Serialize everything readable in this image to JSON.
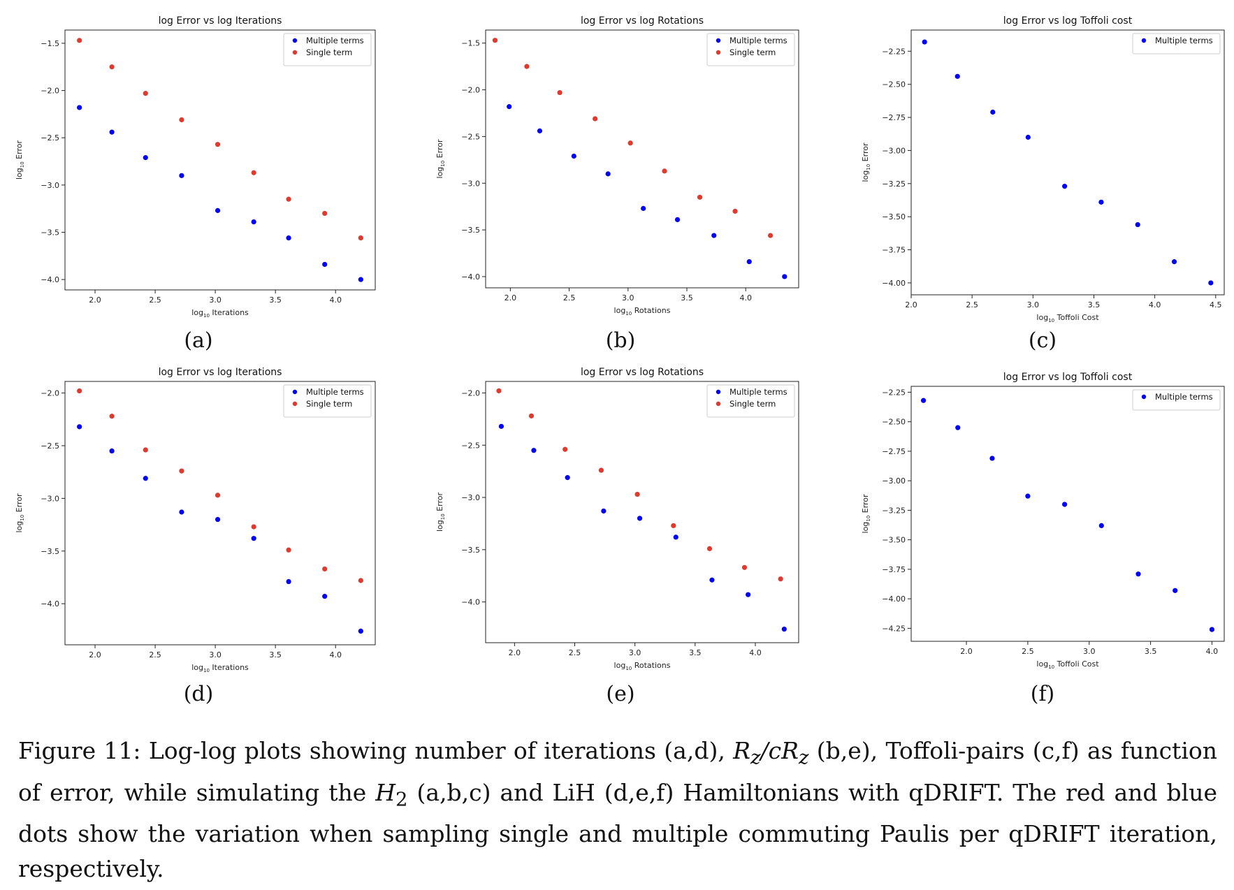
{
  "figure": {
    "caption": {
      "label": "Figure 11:",
      "p1": " Log-log plots showing number of iterations (a,d), ",
      "m1": "R",
      "m1s": "z",
      "m2": "/cR",
      "m2s": "z",
      "p2": " (b,e), Toffoli-pairs (c,f) as function of error, while simulating the ",
      "m3": "H",
      "m3s": "2",
      "p3": " (a,b,c) and LiH (d,e,f) Hamiltonians with qDRIFT. The red and blue dots show the variation when sampling single and multiple commuting Paulis per qDRIFT iteration, respectively."
    }
  },
  "colors": {
    "multiple": "#0000ff",
    "single": "#e03a2e"
  },
  "chart_data": [
    {
      "type": "scatter",
      "panel_label": "(a)",
      "title": "log Error vs log Iterations",
      "xlabel": "log10 Iterations",
      "ylabel": "log10 Error",
      "xlim": [
        1.75,
        4.33
      ],
      "ylim": [
        -4.11,
        -1.36
      ],
      "xticks": [
        2.0,
        2.5,
        3.0,
        3.5,
        4.0
      ],
      "xtick_labels": [
        "2.0",
        "2.5",
        "3.0",
        "3.5",
        "4.0"
      ],
      "yticks": [
        -4.0,
        -3.5,
        -3.0,
        -2.5,
        -2.0,
        -1.5
      ],
      "ytick_labels": [
        "−4.0",
        "−3.5",
        "−3.0",
        "−2.5",
        "−2.0",
        "−1.5"
      ],
      "legend_position": "top-right",
      "series": [
        {
          "name": "Multiple terms",
          "color": "multiple",
          "x": [
            1.87,
            2.14,
            2.42,
            2.72,
            3.02,
            3.32,
            3.61,
            3.91,
            4.21
          ],
          "y": [
            -2.18,
            -2.44,
            -2.71,
            -2.9,
            -3.27,
            -3.39,
            -3.56,
            -3.84,
            -4.0
          ]
        },
        {
          "name": "Single term",
          "color": "single",
          "x": [
            1.87,
            2.14,
            2.42,
            2.72,
            3.02,
            3.32,
            3.61,
            3.91,
            4.21
          ],
          "y": [
            -1.47,
            -1.75,
            -2.03,
            -2.31,
            -2.57,
            -2.87,
            -3.15,
            -3.3,
            -3.56
          ]
        }
      ]
    },
    {
      "type": "scatter",
      "panel_label": "(b)",
      "title": "log Error vs log Rotations",
      "xlabel": "log10 Rotations",
      "ylabel": "log10 Error",
      "xlim": [
        1.79,
        4.45
      ],
      "ylim": [
        -4.12,
        -1.36
      ],
      "xticks": [
        2.0,
        2.5,
        3.0,
        3.5,
        4.0
      ],
      "xtick_labels": [
        "2.0",
        "2.5",
        "3.0",
        "3.5",
        "4.0"
      ],
      "yticks": [
        -4.0,
        -3.5,
        -3.0,
        -2.5,
        -2.0,
        -1.5
      ],
      "ytick_labels": [
        "−4.0",
        "−3.5",
        "−3.0",
        "−2.5",
        "−2.0",
        "−1.5"
      ],
      "legend_position": "top-right",
      "series": [
        {
          "name": "Multiple terms",
          "color": "multiple",
          "x": [
            1.99,
            2.25,
            2.54,
            2.83,
            3.13,
            3.42,
            3.73,
            4.03,
            4.33
          ],
          "y": [
            -2.18,
            -2.44,
            -2.71,
            -2.9,
            -3.27,
            -3.39,
            -3.56,
            -3.84,
            -4.0
          ]
        },
        {
          "name": "Single term",
          "color": "single",
          "x": [
            1.87,
            2.14,
            2.42,
            2.72,
            3.02,
            3.31,
            3.61,
            3.91,
            4.21
          ],
          "y": [
            -1.47,
            -1.75,
            -2.03,
            -2.31,
            -2.57,
            -2.87,
            -3.15,
            -3.3,
            -3.56
          ]
        }
      ]
    },
    {
      "type": "scatter",
      "panel_label": "(c)",
      "title": "log Error vs log Toffoli cost",
      "xlabel": "log10 Toffoli Cost",
      "ylabel": "log10 Error",
      "xlim": [
        2.0,
        4.57
      ],
      "ylim": [
        -4.09,
        -2.09
      ],
      "xticks": [
        2.0,
        2.5,
        3.0,
        3.5,
        4.0,
        4.5
      ],
      "xtick_labels": [
        "2.0",
        "2.5",
        "3.0",
        "3.5",
        "4.0",
        "4.5"
      ],
      "yticks": [
        -4.0,
        -3.75,
        -3.5,
        -3.25,
        -3.0,
        -2.75,
        -2.5,
        -2.25
      ],
      "ytick_labels": [
        "−4.00",
        "−3.75",
        "−3.50",
        "−3.25",
        "−3.00",
        "−2.75",
        "−2.50",
        "−2.25"
      ],
      "legend_position": "top-right",
      "series": [
        {
          "name": "Multiple terms",
          "color": "multiple",
          "x": [
            2.11,
            2.38,
            2.67,
            2.96,
            3.26,
            3.56,
            3.86,
            4.16,
            4.46
          ],
          "y": [
            -2.18,
            -2.44,
            -2.71,
            -2.9,
            -3.27,
            -3.39,
            -3.56,
            -3.84,
            -4.0
          ]
        }
      ]
    },
    {
      "type": "scatter",
      "panel_label": "(d)",
      "title": "log Error vs log Iterations",
      "xlabel": "log10 Iterations",
      "ylabel": "log10 Error",
      "xlim": [
        1.75,
        4.33
      ],
      "ylim": [
        -4.39,
        -1.89
      ],
      "xticks": [
        2.0,
        2.5,
        3.0,
        3.5,
        4.0
      ],
      "xtick_labels": [
        "2.0",
        "2.5",
        "3.0",
        "3.5",
        "4.0"
      ],
      "yticks": [
        -4.0,
        -3.5,
        -3.0,
        -2.5,
        -2.0
      ],
      "ytick_labels": [
        "−4.0",
        "−3.5",
        "−3.0",
        "−2.5",
        "−2.0"
      ],
      "legend_position": "top-right",
      "series": [
        {
          "name": "Multiple terms",
          "color": "multiple",
          "x": [
            1.87,
            2.14,
            2.42,
            2.72,
            3.02,
            3.32,
            3.61,
            3.91,
            4.21
          ],
          "y": [
            -2.32,
            -2.55,
            -2.81,
            -3.13,
            -3.2,
            -3.38,
            -3.79,
            -3.93,
            -4.26
          ]
        },
        {
          "name": "Single term",
          "color": "single",
          "x": [
            1.87,
            2.14,
            2.42,
            2.72,
            3.02,
            3.32,
            3.61,
            3.91,
            4.21
          ],
          "y": [
            -1.98,
            -2.22,
            -2.54,
            -2.74,
            -2.97,
            -3.27,
            -3.49,
            -3.67,
            -3.78
          ]
        }
      ]
    },
    {
      "type": "scatter",
      "panel_label": "(e)",
      "title": "log Error vs log Rotations",
      "xlabel": "log10 Rotations",
      "ylabel": "log10 Error",
      "xlim": [
        1.76,
        4.36
      ],
      "ylim": [
        -4.39,
        -1.89
      ],
      "xticks": [
        2.0,
        2.5,
        3.0,
        3.5,
        4.0
      ],
      "xtick_labels": [
        "2.0",
        "2.5",
        "3.0",
        "3.5",
        "4.0"
      ],
      "yticks": [
        -4.0,
        -3.5,
        -3.0,
        -2.5,
        -2.0
      ],
      "ytick_labels": [
        "−4.0",
        "−3.5",
        "−3.0",
        "−2.5",
        "−2.0"
      ],
      "legend_position": "top-right",
      "series": [
        {
          "name": "Multiple terms",
          "color": "multiple",
          "x": [
            1.89,
            2.16,
            2.44,
            2.74,
            3.04,
            3.34,
            3.64,
            3.94,
            4.24
          ],
          "y": [
            -2.32,
            -2.55,
            -2.81,
            -3.13,
            -3.2,
            -3.38,
            -3.79,
            -3.93,
            -4.26
          ]
        },
        {
          "name": "Single term",
          "color": "single",
          "x": [
            1.87,
            2.14,
            2.42,
            2.72,
            3.02,
            3.32,
            3.62,
            3.91,
            4.21
          ],
          "y": [
            -1.98,
            -2.22,
            -2.54,
            -2.74,
            -2.97,
            -3.27,
            -3.49,
            -3.67,
            -3.78
          ]
        }
      ]
    },
    {
      "type": "scatter",
      "panel_label": "(f)",
      "title": "log Error vs log Toffoli cost",
      "xlabel": "log10 Toffoli Cost",
      "ylabel": "log10 Error",
      "xlim": [
        1.55,
        4.1
      ],
      "ylim": [
        -4.36,
        -2.2
      ],
      "xticks": [
        2.0,
        2.5,
        3.0,
        3.5,
        4.0
      ],
      "xtick_labels": [
        "2.0",
        "2.5",
        "3.0",
        "3.5",
        "4.0"
      ],
      "yticks": [
        -4.25,
        -4.0,
        -3.75,
        -3.5,
        -3.25,
        -3.0,
        -2.75,
        -2.5,
        -2.25
      ],
      "ytick_labels": [
        "−4.25",
        "−4.00",
        "−3.75",
        "−3.50",
        "−3.25",
        "−3.00",
        "−2.75",
        "−2.50",
        "−2.25"
      ],
      "legend_position": "top-right",
      "series": [
        {
          "name": "Multiple terms",
          "color": "multiple",
          "x": [
            1.65,
            1.93,
            2.21,
            2.5,
            2.8,
            3.1,
            3.4,
            3.7,
            4.0
          ],
          "y": [
            -2.32,
            -2.55,
            -2.81,
            -3.13,
            -3.2,
            -3.38,
            -3.79,
            -3.93,
            -4.26
          ]
        }
      ]
    }
  ]
}
